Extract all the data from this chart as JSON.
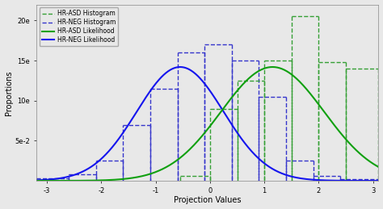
{
  "title": "",
  "xlabel": "Projection Values",
  "ylabel": "Proportions",
  "xlim": [
    -3.2,
    3.1
  ],
  "ylim": [
    0,
    0.22
  ],
  "yticks": [
    0.05,
    0.1,
    0.15,
    0.2
  ],
  "ytick_labels": [
    "5e-2",
    "10e",
    "15e",
    "20e"
  ],
  "xticks": [
    -3,
    -2,
    -1,
    0,
    1,
    2,
    3
  ],
  "neg_mean": -0.55,
  "neg_std": 0.8,
  "asd_mean": 1.15,
  "asd_std": 0.95,
  "neg_hist_edges": [
    -3.2,
    -2.6,
    -2.1,
    -1.6,
    -1.1,
    -0.6,
    -0.1,
    0.4,
    0.9,
    1.4,
    1.9,
    2.4,
    3.1
  ],
  "neg_hist_heights": [
    0.003,
    0.008,
    0.025,
    0.07,
    0.115,
    0.16,
    0.17,
    0.15,
    0.105,
    0.025,
    0.006,
    0.002
  ],
  "asd_hist_edges": [
    -0.55,
    0.0,
    0.5,
    1.0,
    1.5,
    2.0,
    2.5,
    3.1
  ],
  "asd_hist_heights": [
    0.006,
    0.09,
    0.125,
    0.15,
    0.205,
    0.148,
    0.14
  ],
  "color_neg_hist": "#3535cc",
  "color_asd_hist": "#35a035",
  "color_neg_line": "#1515ee",
  "color_asd_line": "#10a010",
  "bg_color": "#e8e8e8",
  "legend_labels": [
    "HR-ASD Histogram",
    "HR-NEG Histogram",
    "HR-ASD Likelihood",
    "HR-NEG Likelihood"
  ],
  "figsize": [
    4.74,
    2.59
  ],
  "dpi": 100
}
